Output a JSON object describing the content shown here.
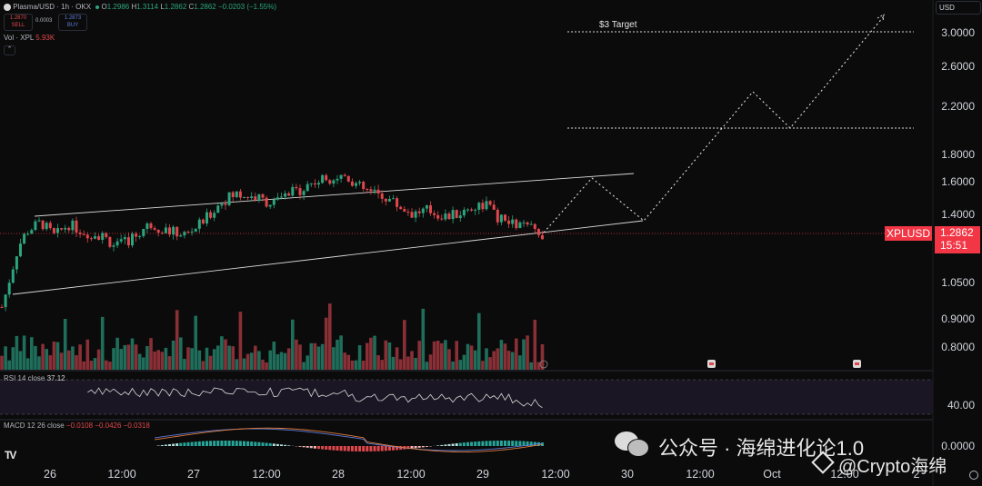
{
  "header": {
    "symbol_text": "Plasma/USD · 1h · OKX",
    "o_label": "O",
    "o_val": "1.2986",
    "h_label": "H",
    "h_val": "1.3114",
    "l_label": "L",
    "l_val": "1.2862",
    "c_label": "C",
    "c_val": "1.2862",
    "chg": "−0.0203 (−1.55%)",
    "sell_price": "1.2870",
    "sell_label": "SELL",
    "spread": "0.0003",
    "buy_price": "1.2873",
    "buy_label": "BUY",
    "vol_label": "Vol · XPL",
    "vol_value": "5.93K",
    "collapse_icon": "chevron-up-icon"
  },
  "currency_selector": "USD",
  "price_axis": {
    "labels": [
      "3.0000",
      "2.6000",
      "2.2000",
      "1.8000",
      "1.6000",
      "1.4000",
      "1.0500",
      "0.9000",
      "0.8000"
    ],
    "ticker": "XPLUSD",
    "last_price": "1.2862",
    "countdown": "15:51"
  },
  "annotations": {
    "target_text": "$3 Target"
  },
  "rsi": {
    "label": "RSI 14 close",
    "value": "37.12",
    "axis_label": "40.00"
  },
  "macd": {
    "label": "MACD 12 26 close",
    "v1": "−0.0108",
    "v2": "−0.0426",
    "v3": "−0.0318",
    "axis_label": "0.0000"
  },
  "x_axis": {
    "labels": [
      "26",
      "12:00",
      "27",
      "12:00",
      "28",
      "12:00",
      "29",
      "12:00",
      "30",
      "12:00",
      "Oct",
      "12:00",
      "2"
    ]
  },
  "logo": "TV",
  "watermark": {
    "line1": "公众号 · 海绵进化论1.0",
    "line2": "@Crypto海绵"
  },
  "colors": {
    "bull": "#2ba57e",
    "bear": "#e0474d",
    "bull_vol": "#1f6e5b",
    "bear_vol": "#8a2f36",
    "tag": "#f23645",
    "trend": "#d9d9d9"
  },
  "chart_data": {
    "type": "candlestick",
    "ylabel": "",
    "xlabel": "",
    "ylim": [
      0.75,
      3.2
    ],
    "y_scale": "log",
    "candles_sample_close": [
      1.02,
      1.28,
      1.33,
      1.3,
      1.36,
      1.29,
      1.26,
      1.31,
      1.35,
      1.46,
      1.53,
      1.5,
      1.6,
      1.66,
      1.56,
      1.5,
      1.49,
      1.4,
      1.38,
      1.36,
      1.33,
      1.29
    ],
    "channel": {
      "upper": [
        1.4,
        1.64
      ],
      "lower": [
        1.0,
        1.34
      ]
    },
    "projection_path": [
      1.29,
      1.63,
      1.34,
      2.3,
      2.05,
      3.15
    ],
    "levels": [
      {
        "label": "$3 Target",
        "value": 3.0
      },
      {
        "label": "",
        "value": 2.05
      }
    ],
    "rsi_last": 37.12,
    "macd_last": [
      -0.0108,
      -0.0426,
      -0.0318
    ]
  }
}
